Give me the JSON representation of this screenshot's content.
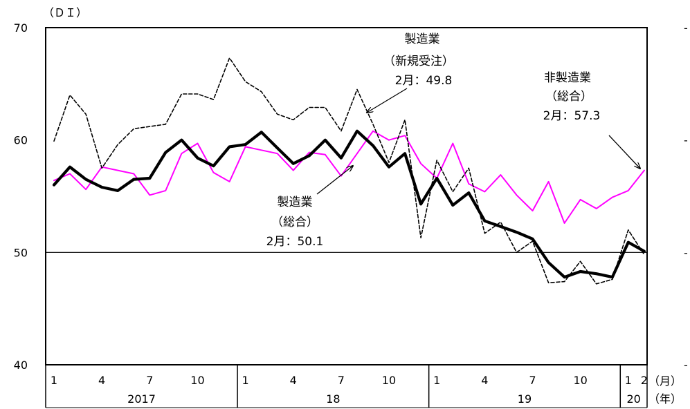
{
  "chart_data": {
    "type": "line",
    "y_unit_label": "（ＤＩ）",
    "ylim": [
      40,
      70
    ],
    "y_ticks": [
      "70",
      "60",
      "50",
      "40"
    ],
    "y_tick_values": [
      70,
      60,
      50,
      40
    ],
    "reference_line": 50,
    "x_month_unit_label": "（月）",
    "x_year_unit_label": "（年）",
    "month_tick_labels": [
      {
        "index": 0,
        "label": "1"
      },
      {
        "index": 3,
        "label": "4"
      },
      {
        "index": 6,
        "label": "7"
      },
      {
        "index": 9,
        "label": "10"
      },
      {
        "index": 12,
        "label": "1"
      },
      {
        "index": 15,
        "label": "4"
      },
      {
        "index": 18,
        "label": "7"
      },
      {
        "index": 21,
        "label": "10"
      },
      {
        "index": 24,
        "label": "1"
      },
      {
        "index": 27,
        "label": "4"
      },
      {
        "index": 30,
        "label": "7"
      },
      {
        "index": 33,
        "label": "10"
      },
      {
        "index": 36,
        "label": "1"
      },
      {
        "index": 37,
        "label": "2"
      }
    ],
    "year_labels": [
      {
        "label": "2017",
        "start_index": 0,
        "end_index": 11
      },
      {
        "label": "18",
        "start_index": 12,
        "end_index": 23
      },
      {
        "label": "19",
        "start_index": 24,
        "end_index": 35
      },
      {
        "label": "20",
        "start_index": 36,
        "end_index": 37
      }
    ],
    "series": [
      {
        "key": "mfg_new_orders",
        "style": "dashed",
        "color": "#000000",
        "values": [
          59.9,
          64.0,
          62.3,
          57.5,
          59.6,
          61.0,
          61.2,
          61.4,
          64.1,
          64.1,
          63.6,
          67.3,
          65.2,
          64.3,
          62.3,
          61.8,
          62.9,
          62.9,
          60.8,
          64.5,
          61.4,
          58.0,
          61.8,
          51.3,
          58.2,
          55.4,
          57.5,
          51.7,
          52.7,
          50.0,
          51.0,
          47.3,
          47.4,
          49.2,
          47.2,
          47.6,
          52.0,
          49.8
        ]
      },
      {
        "key": "mfg_composite",
        "style": "thick",
        "color": "#000000",
        "values": [
          56.0,
          57.6,
          56.5,
          55.8,
          55.5,
          56.5,
          56.6,
          58.9,
          60.0,
          58.4,
          57.7,
          59.4,
          59.6,
          60.7,
          59.3,
          57.9,
          58.6,
          60.0,
          58.4,
          60.8,
          59.5,
          57.6,
          58.8,
          54.3,
          56.6,
          54.2,
          55.3,
          52.8,
          52.3,
          51.8,
          51.2,
          49.1,
          47.8,
          48.3,
          48.1,
          47.8,
          50.9,
          50.1
        ]
      },
      {
        "key": "nonmfg_composite",
        "style": "solid",
        "color": "#ff00ff",
        "values": [
          56.4,
          57.0,
          55.6,
          57.6,
          57.3,
          57.0,
          55.1,
          55.5,
          58.8,
          59.7,
          57.1,
          56.3,
          59.4,
          59.1,
          58.8,
          57.3,
          58.9,
          58.7,
          56.8,
          58.8,
          60.8,
          60.0,
          60.4,
          57.9,
          56.6,
          59.7,
          56.1,
          55.4,
          56.9,
          55.1,
          53.7,
          56.3,
          52.6,
          54.7,
          53.9,
          54.9,
          55.5,
          57.3
        ]
      }
    ],
    "annotations": {
      "new_orders": {
        "line1": "製造業",
        "line2": "（新規受注）",
        "line3": "2月：49.8"
      },
      "nonmfg": {
        "line1": "非製造業",
        "line2": "（総合）",
        "line3": "2月：57.3"
      },
      "mfg": {
        "line1": "製造業",
        "line2": "（総合）",
        "line3": "2月：50.1"
      }
    },
    "right_edge_marks": [
      "-",
      "-",
      "-",
      "-"
    ]
  }
}
